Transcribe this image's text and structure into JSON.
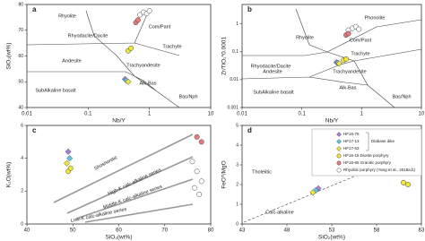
{
  "chart_data": [
    {
      "type": "scatter",
      "panel": "a",
      "xlabel": "Nb/Y",
      "ylabel": "SiO₂(wt%)",
      "xscale": "log",
      "yscale": "linear",
      "xlim": [
        0.01,
        10
      ],
      "ylim": [
        40,
        80
      ],
      "xticks": [
        0.01,
        0.1,
        1,
        10
      ],
      "yticks": [
        40,
        50,
        60,
        70,
        80
      ],
      "annotations": [
        "Rhyolite",
        "Com/Pant",
        "Rhyodacite/Dacite",
        "Trachyte",
        "Andesite",
        "Trachyandesite",
        "Alk-Bas",
        "SubAlkaline basalt",
        "Bas/Nph"
      ],
      "series": [
        {
          "color": "#ffffff",
          "marker": "circle",
          "x": [
            0.7,
            0.8,
            0.9,
            1.0
          ],
          "values": [
            76,
            77,
            76.5,
            77.5
          ]
        },
        {
          "color": "#e87a7a",
          "marker": "circle",
          "x": [
            0.6,
            0.65
          ],
          "values": [
            73,
            74
          ]
        },
        {
          "color": "#f2e63a",
          "marker": "circle",
          "x": [
            0.45,
            0.5
          ],
          "values": [
            62,
            63
          ]
        },
        {
          "color": "#b07fd6",
          "marker": "diamond",
          "x": [
            0.4
          ],
          "values": [
            51
          ]
        },
        {
          "color": "#5fc8e6",
          "marker": "diamond",
          "x": [
            0.42
          ],
          "values": [
            50.5
          ]
        },
        {
          "color": "#f2e63a",
          "marker": "diamond",
          "x": [
            0.45
          ],
          "values": [
            50
          ]
        }
      ]
    },
    {
      "type": "scatter",
      "panel": "b",
      "xlabel": "Nb/Y",
      "ylabel": "Zr/TiO₂*0.0001",
      "xscale": "log",
      "yscale": "log",
      "xlim": [
        0.01,
        10
      ],
      "ylim": [
        0.001,
        5
      ],
      "xticks": [
        0.01,
        0.1,
        1,
        10
      ],
      "yticks": [
        0.001,
        0.01,
        0.1,
        1
      ],
      "annotations": [
        "Phonolite",
        "Rhyolite",
        "Com/Pant",
        "Trachyte",
        "Rhyodacite/Dacite",
        "Andesite",
        "Trachyandesite",
        "Alk-Bas",
        "SubAlkaline basalt",
        "Bas/Nph"
      ],
      "series": [
        {
          "color": "#ffffff",
          "marker": "circle",
          "x": [
            0.6,
            0.7,
            0.8,
            0.9
          ],
          "values": [
            0.6,
            0.7,
            0.8,
            0.65
          ]
        },
        {
          "color": "#e87a7a",
          "marker": "circle",
          "x": [
            0.55,
            0.6
          ],
          "values": [
            0.4,
            0.45
          ]
        },
        {
          "color": "#f2e63a",
          "marker": "circle",
          "x": [
            0.5,
            0.55
          ],
          "values": [
            0.05,
            0.055
          ]
        },
        {
          "color": "#b07fd6",
          "marker": "diamond",
          "x": [
            0.38
          ],
          "values": [
            0.042
          ]
        },
        {
          "color": "#5fc8e6",
          "marker": "diamond",
          "x": [
            0.4
          ],
          "values": [
            0.04
          ]
        },
        {
          "color": "#f2e63a",
          "marker": "diamond",
          "x": [
            0.42
          ],
          "values": [
            0.038
          ]
        }
      ]
    },
    {
      "type": "scatter",
      "panel": "c",
      "xlabel": "SiO₂(wt%)",
      "ylabel": "K₂O(wt%)",
      "xscale": "linear",
      "yscale": "linear",
      "xlim": [
        40,
        80
      ],
      "ylim": [
        0,
        6
      ],
      "xticks": [
        40,
        50,
        60,
        70,
        80
      ],
      "yticks": [
        0,
        2,
        4,
        6
      ],
      "annotations": [
        "Shoshonitic",
        "High-K calc-alkaline series",
        "Middle-K calc-alkaline series",
        "Low-K calc-alkaline series"
      ],
      "series": [
        {
          "color": "#b07fd6",
          "marker": "diamond",
          "x": [
            49
          ],
          "values": [
            4.4
          ]
        },
        {
          "color": "#5fc8e6",
          "marker": "diamond",
          "x": [
            49.3
          ],
          "values": [
            4.0
          ]
        },
        {
          "color": "#f2e63a",
          "marker": "diamond",
          "x": [
            48.7
          ],
          "values": [
            3.7
          ]
        },
        {
          "color": "#f2e63a",
          "marker": "circle",
          "x": [
            49,
            49.5
          ],
          "values": [
            3.2,
            3.4
          ]
        },
        {
          "color": "#e87a7a",
          "marker": "circle",
          "x": [
            77,
            78
          ],
          "values": [
            5.3,
            5.0
          ]
        },
        {
          "color": "#ffffff",
          "marker": "circle",
          "x": [
            76,
            77,
            78,
            76.5,
            77.5
          ],
          "values": [
            3.8,
            3.2,
            2.6,
            2.2,
            1.8
          ]
        }
      ]
    },
    {
      "type": "scatter",
      "panel": "d",
      "xlabel": "SiO₂(wt%)",
      "ylabel": "FeOᵀ/MgO",
      "xscale": "linear",
      "yscale": "linear",
      "xlim": [
        43,
        63
      ],
      "ylim": [
        0,
        5
      ],
      "xticks": [
        43,
        48,
        53,
        58,
        63
      ],
      "yticks": [
        0,
        1,
        2,
        3,
        4,
        5
      ],
      "annotations": [
        "Tholeiitic",
        "Calc-alkaline"
      ],
      "legend_group": "Diabase dike",
      "legend": [
        {
          "name": "HF16-75",
          "color": "#b07fd6",
          "marker": "diamond"
        },
        {
          "name": "HF17-13",
          "color": "#5fc8e6",
          "marker": "diamond"
        },
        {
          "name": "HF17-53",
          "color": "#f2e63a",
          "marker": "diamond"
        },
        {
          "name": "HF16-15 Diorite porphyry",
          "color": "#f2e63a",
          "marker": "circle"
        },
        {
          "name": "HF16-65 Granitic porphyry",
          "color": "#e87a7a",
          "marker": "circle"
        },
        {
          "name": "Rhyolitic porphyry (Yang et al., 2019a,b)",
          "color": "#ffffff",
          "marker": "circle"
        }
      ],
      "series": [
        {
          "color": "#b07fd6",
          "marker": "diamond",
          "x": [
            51.5
          ],
          "values": [
            1.8
          ]
        },
        {
          "color": "#5fc8e6",
          "marker": "diamond",
          "x": [
            51.2
          ],
          "values": [
            1.7
          ]
        },
        {
          "color": "#f2e63a",
          "marker": "diamond",
          "x": [
            50.9
          ],
          "values": [
            1.6
          ]
        },
        {
          "color": "#f2e63a",
          "marker": "circle",
          "x": [
            61,
            61.5
          ],
          "values": [
            2.1,
            2.0
          ]
        }
      ]
    }
  ]
}
